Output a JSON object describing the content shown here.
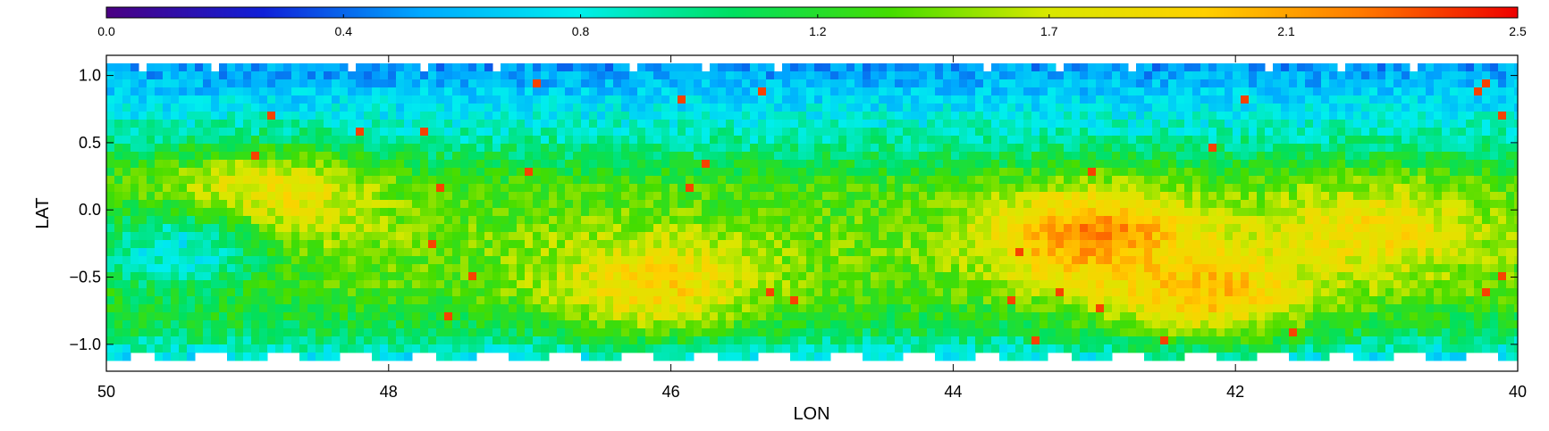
{
  "chart_data": {
    "type": "heatmap",
    "title": "",
    "xlabel": "LON",
    "ylabel": "LAT",
    "xlim": [
      50,
      40
    ],
    "ylim": [
      -1.2,
      1.15
    ],
    "x_ticks": [
      {
        "value": 50,
        "label": "50"
      },
      {
        "value": 48,
        "label": "48"
      },
      {
        "value": 46,
        "label": "46"
      },
      {
        "value": 44,
        "label": "44"
      },
      {
        "value": 42,
        "label": "42"
      },
      {
        "value": 40,
        "label": "40"
      }
    ],
    "y_ticks": [
      {
        "value": 1.0,
        "label": "1.0"
      },
      {
        "value": 0.5,
        "label": "0.5"
      },
      {
        "value": 0.0,
        "label": "0.0"
      },
      {
        "value": -0.5,
        "label": "−0.5"
      },
      {
        "value": -1.0,
        "label": "−1.0"
      }
    ],
    "colorbar": {
      "colormap": "rainbow",
      "range": [
        0.0,
        2.5
      ],
      "orientation": "horizontal",
      "placement": "top",
      "ticks": [
        {
          "value": 0.0,
          "label": "0.0"
        },
        {
          "value": 0.42,
          "label": "0.4"
        },
        {
          "value": 0.84,
          "label": "0.8"
        },
        {
          "value": 1.26,
          "label": "1.2"
        },
        {
          "value": 1.67,
          "label": "1.7"
        },
        {
          "value": 2.09,
          "label": "2.1"
        },
        {
          "value": 2.5,
          "label": "2.5"
        }
      ],
      "colors": [
        "#4b0082",
        "#1020d8",
        "#00a8ff",
        "#00eeee",
        "#00e060",
        "#44dd00",
        "#d8e800",
        "#ffd000",
        "#ff7a00",
        "#ee0000"
      ]
    },
    "field_profile": {
      "description_values_by_latitude": [
        {
          "lat": 1.05,
          "value": 0.55
        },
        {
          "lat": 0.8,
          "value": 0.75
        },
        {
          "lat": 0.5,
          "value": 1.0
        },
        {
          "lat": 0.2,
          "value": 1.35
        },
        {
          "lat": -0.2,
          "value": 1.45
        },
        {
          "lat": -0.6,
          "value": 1.4
        },
        {
          "lat": -0.9,
          "value": 1.15
        },
        {
          "lat": -1.1,
          "value": 0.8
        }
      ],
      "hotspots": [
        {
          "lon": 43.0,
          "lat": -0.2,
          "value": 2.2
        },
        {
          "lon": 42.2,
          "lat": -0.6,
          "value": 2.0
        },
        {
          "lon": 48.9,
          "lat": 0.05,
          "value": 1.95
        },
        {
          "lon": 46.1,
          "lat": -0.55,
          "value": 1.9
        },
        {
          "lon": 41.0,
          "lat": -0.15,
          "value": 1.85
        },
        {
          "lon": 49.5,
          "lat": -0.3,
          "value": 0.85
        }
      ]
    }
  }
}
